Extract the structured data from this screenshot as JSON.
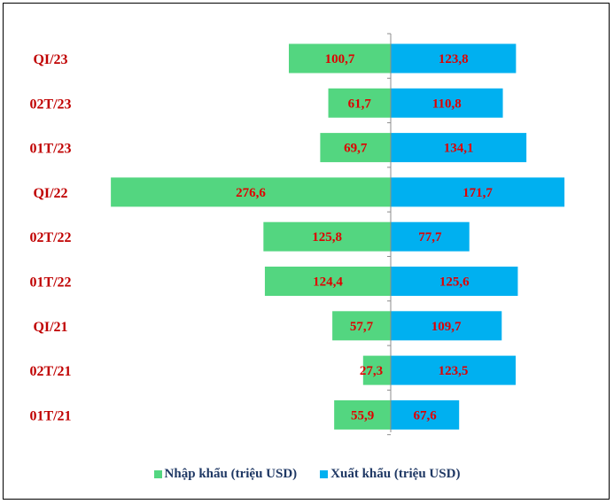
{
  "chart_data": {
    "type": "bar",
    "orientation": "horizontal-diverging",
    "categories": [
      "QI/23",
      "02T/23",
      "01T/23",
      "QI/22",
      "02T/22",
      "01T/22",
      "QI/21",
      "02T/21",
      "01T/21"
    ],
    "series": [
      {
        "name": "Nhập khẩu (triệu USD)",
        "values": [
          100.7,
          61.7,
          69.7,
          276.6,
          125.8,
          124.4,
          57.7,
          27.3,
          55.9
        ],
        "labels": [
          "100,7",
          "61,7",
          "69,7",
          "276,6",
          "125,8",
          "124,4",
          "57,7",
          "27,3",
          "55,9"
        ],
        "color": "#53d680",
        "side": "left"
      },
      {
        "name": "Xuất khẩu (triệu USD)",
        "values": [
          123.8,
          110.8,
          134.1,
          171.7,
          77.7,
          125.6,
          109.7,
          123.5,
          67.6
        ],
        "labels": [
          "123,8",
          "110,8",
          "134,1",
          "171,7",
          "77,7",
          "125,6",
          "109,7",
          "123,5",
          "67,6"
        ],
        "color": "#00b0f0",
        "side": "right"
      }
    ],
    "category_label_color": "#c00000",
    "value_label_color": "#e00000",
    "grid": false,
    "legend_position": "bottom"
  }
}
